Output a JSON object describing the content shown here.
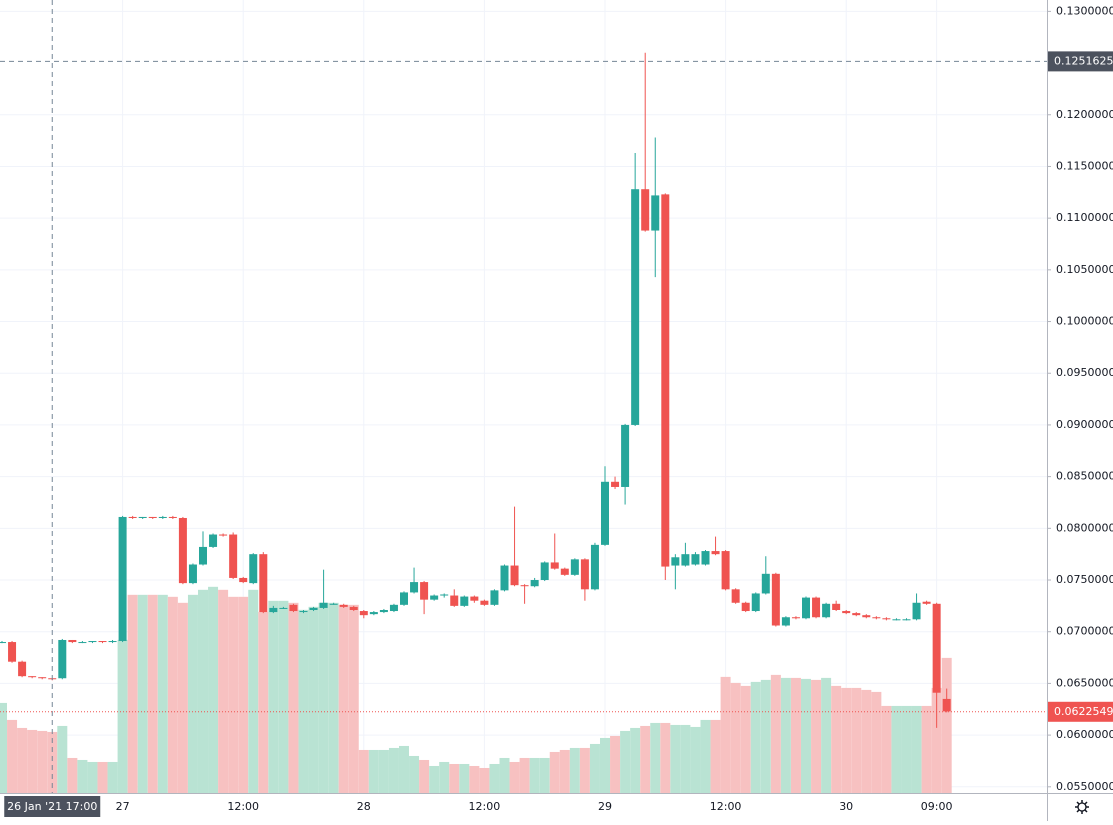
{
  "chart_data": {
    "type": "candlestick",
    "categories": [
      null,
      null,
      null,
      null,
      null,
      "26 Jan '21 17:00",
      null,
      null,
      null,
      null,
      null,
      null,
      "27",
      null,
      null,
      null,
      null,
      null,
      null,
      null,
      null,
      null,
      null,
      null,
      "12:00",
      null,
      null,
      null,
      null,
      null,
      null,
      null,
      null,
      null,
      null,
      null,
      "28",
      null,
      null,
      null,
      null,
      null,
      null,
      null,
      null,
      null,
      null,
      null,
      "12:00",
      null,
      null,
      null,
      null,
      null,
      null,
      null,
      null,
      null,
      null,
      null,
      "29",
      null,
      null,
      null,
      null,
      null,
      null,
      null,
      null,
      null,
      null,
      null,
      "12:00",
      null,
      null,
      null,
      null,
      null,
      null,
      null,
      null,
      null,
      null,
      null,
      "30",
      null,
      null,
      null,
      null,
      null,
      null,
      null,
      null,
      "09:00",
      null
    ],
    "open": [
      0.069,
      0.069,
      0.0671,
      0.0657,
      0.0656,
      0.0655,
      0.0655,
      0.0692,
      0.069,
      0.069,
      0.0691,
      0.069,
      0.0691,
      0.0811,
      0.081,
      0.0811,
      0.081,
      0.0811,
      0.081,
      0.0747,
      0.0765,
      0.0782,
      0.0794,
      0.0794,
      0.0752,
      0.0747,
      0.0775,
      0.0719,
      0.0723,
      0.0726,
      0.072,
      0.0721,
      0.0723,
      0.0727,
      0.0726,
      0.0724,
      0.072,
      0.0717,
      0.0719,
      0.072,
      0.0726,
      0.0738,
      0.0748,
      0.0731,
      0.0735,
      0.0735,
      0.0725,
      0.0734,
      0.073,
      0.0726,
      0.074,
      0.0764,
      0.0745,
      0.0744,
      0.075,
      0.0767,
      0.0761,
      0.0755,
      0.077,
      0.0741,
      0.0784,
      0.0845,
      0.084,
      0.09,
      0.1128,
      0.1088,
      0.1123,
      0.0764,
      0.0764,
      0.0765,
      0.0765,
      0.0778,
      0.0778,
      0.0741,
      0.0728,
      0.072,
      0.0737,
      0.0756,
      0.0706,
      0.0714,
      0.0713,
      0.0733,
      0.0714,
      0.0727,
      0.072,
      0.0718,
      0.0716,
      0.0714,
      0.0713,
      0.0712,
      0.0712,
      0.0712,
      0.0729,
      0.0727,
      0.0635
    ],
    "high": [
      0.0691,
      0.0691,
      0.0672,
      0.0657,
      0.0656,
      0.0655,
      0.0693,
      0.0692,
      0.0691,
      0.0691,
      0.0691,
      0.0692,
      0.0812,
      0.0812,
      0.0811,
      0.0811,
      0.0812,
      0.0812,
      0.0811,
      0.0766,
      0.0797,
      0.0795,
      0.0795,
      0.0796,
      0.0753,
      0.0776,
      0.0777,
      0.0725,
      0.0724,
      0.0727,
      0.0721,
      0.0724,
      0.076,
      0.0728,
      0.0727,
      0.0725,
      0.0721,
      0.072,
      0.0722,
      0.0727,
      0.0739,
      0.0762,
      0.0749,
      0.0736,
      0.0737,
      0.0741,
      0.0735,
      0.0735,
      0.0731,
      0.0741,
      0.0765,
      0.0821,
      0.0746,
      0.0752,
      0.0768,
      0.0795,
      0.0762,
      0.0771,
      0.0771,
      0.0786,
      0.086,
      0.085,
      0.0901,
      0.1163,
      0.126,
      0.1178,
      0.1124,
      0.0775,
      0.0786,
      0.0777,
      0.0779,
      0.0792,
      0.0779,
      0.0742,
      0.0729,
      0.0738,
      0.0773,
      0.0757,
      0.0715,
      0.0715,
      0.0734,
      0.0734,
      0.0728,
      0.073,
      0.0721,
      0.0719,
      0.0717,
      0.0715,
      0.0714,
      0.0713,
      0.0713,
      0.0737,
      0.073,
      0.0728,
      0.0645
    ],
    "low": [
      0.0689,
      0.067,
      0.0656,
      0.0655,
      0.0654,
      0.0653,
      0.0654,
      0.0689,
      0.0689,
      0.0689,
      0.0689,
      0.0689,
      0.069,
      0.0809,
      0.0809,
      0.0809,
      0.0809,
      0.0809,
      0.0746,
      0.0746,
      0.0764,
      0.0781,
      0.0792,
      0.0751,
      0.0747,
      0.0746,
      0.0718,
      0.0718,
      0.0722,
      0.0719,
      0.0718,
      0.072,
      0.0722,
      0.0726,
      0.0723,
      0.072,
      0.0713,
      0.0716,
      0.0718,
      0.0719,
      0.0725,
      0.0737,
      0.0717,
      0.073,
      0.0733,
      0.0724,
      0.0724,
      0.0728,
      0.0725,
      0.0725,
      0.0739,
      0.0744,
      0.0727,
      0.0743,
      0.0749,
      0.076,
      0.0754,
      0.0754,
      0.073,
      0.074,
      0.0783,
      0.0838,
      0.0823,
      0.0899,
      0.1087,
      0.1043,
      0.075,
      0.0741,
      0.0763,
      0.0764,
      0.0764,
      0.0774,
      0.074,
      0.0727,
      0.0719,
      0.0719,
      0.0736,
      0.0705,
      0.0705,
      0.0712,
      0.0712,
      0.0713,
      0.0713,
      0.072,
      0.0717,
      0.0715,
      0.0713,
      0.0712,
      0.0711,
      0.0711,
      0.0711,
      0.0711,
      0.0726,
      0.0607,
      0.0622
    ],
    "close": [
      0.069,
      0.0671,
      0.0657,
      0.0656,
      0.0655,
      0.0654,
      0.0692,
      0.069,
      0.069,
      0.0691,
      0.069,
      0.0691,
      0.0811,
      0.081,
      0.0811,
      0.081,
      0.0811,
      0.081,
      0.0747,
      0.0765,
      0.0782,
      0.0794,
      0.0793,
      0.0752,
      0.0748,
      0.0775,
      0.0719,
      0.0723,
      0.0723,
      0.072,
      0.072,
      0.0723,
      0.0728,
      0.0727,
      0.0724,
      0.0721,
      0.0716,
      0.0719,
      0.0721,
      0.0726,
      0.0738,
      0.0748,
      0.0731,
      0.0735,
      0.0736,
      0.0725,
      0.0734,
      0.073,
      0.0726,
      0.074,
      0.0764,
      0.0745,
      0.0744,
      0.075,
      0.0767,
      0.0761,
      0.0755,
      0.077,
      0.0741,
      0.0784,
      0.0845,
      0.084,
      0.09,
      0.1128,
      0.1088,
      0.1122,
      0.0763,
      0.0772,
      0.0775,
      0.0775,
      0.0778,
      0.0775,
      0.0741,
      0.0728,
      0.072,
      0.0737,
      0.0756,
      0.0706,
      0.0714,
      0.0713,
      0.0733,
      0.0714,
      0.0727,
      0.0721,
      0.0718,
      0.0716,
      0.0714,
      0.0713,
      0.0712,
      0.0712,
      0.0712,
      0.0728,
      0.0727,
      0.0641,
      0.0623
    ],
    "volume": [
      90,
      73,
      65,
      63,
      62,
      61,
      67,
      35,
      33,
      31,
      31,
      31,
      153,
      198,
      198,
      198,
      198,
      196,
      190,
      198,
      203,
      206,
      203,
      196,
      196,
      203,
      181,
      192,
      192,
      190,
      183,
      186,
      190,
      190,
      188,
      188,
      43,
      43,
      43,
      45,
      47,
      37,
      33,
      27,
      31,
      29,
      29,
      27,
      25,
      29,
      35,
      31,
      35,
      35,
      35,
      41,
      43,
      45,
      45,
      49,
      55,
      57,
      62,
      65,
      67,
      70,
      70,
      68,
      68,
      66,
      73,
      73,
      116,
      110,
      107,
      111,
      113,
      118,
      115,
      115,
      114,
      113,
      115,
      107,
      105,
      105,
      103,
      101,
      87,
      87,
      87,
      87,
      87,
      105,
      135
    ],
    "up_color": "#26a69a",
    "down_color": "#ef5350",
    "up_volume_color": "#b9e3d3",
    "down_volume_color": "#f7c1c1",
    "ylim": [
      0.0544,
      0.1311
    ],
    "yticks": [
      {
        "value": 0.055,
        "label": "0.05500000"
      },
      {
        "value": 0.06,
        "label": "0.06000000"
      },
      {
        "value": 0.065,
        "label": "0.06500000"
      },
      {
        "value": 0.07,
        "label": "0.07000000"
      },
      {
        "value": 0.075,
        "label": "0.07500000"
      },
      {
        "value": 0.08,
        "label": "0.08000000"
      },
      {
        "value": 0.085,
        "label": "0.08500000"
      },
      {
        "value": 0.09,
        "label": "0.09000000"
      },
      {
        "value": 0.095,
        "label": "0.09500000"
      },
      {
        "value": 0.1,
        "label": "0.10000000"
      },
      {
        "value": 0.105,
        "label": "0.10500000"
      },
      {
        "value": 0.11,
        "label": "0.11000000"
      },
      {
        "value": 0.115,
        "label": "0.11500000"
      },
      {
        "value": 0.12,
        "label": "0.12000000"
      },
      {
        "value": 0.13,
        "label": "0.13000000"
      }
    ],
    "grid": true,
    "crosshair": {
      "value": 0.12516253,
      "label": "0.12516253"
    },
    "last_price": {
      "value": 0.06225494,
      "label": "0.06225494"
    }
  }
}
